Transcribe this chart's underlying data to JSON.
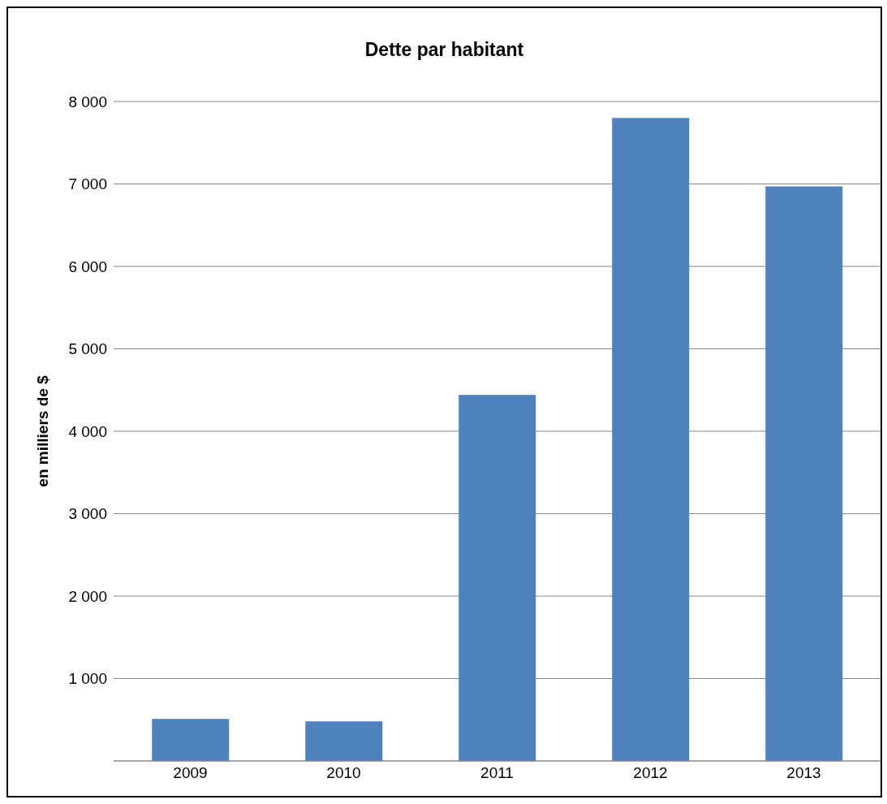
{
  "chart_data": {
    "type": "bar",
    "title": "Dette par habitant",
    "ylabel": "en milliers de $",
    "categories": [
      "2009",
      "2010",
      "2011",
      "2012",
      "2013"
    ],
    "values": [
      510,
      480,
      4440,
      7800,
      6970
    ],
    "color": "#4f81bd",
    "ylim": [
      0,
      8000
    ],
    "yticks": [
      {
        "value": 0,
        "label": null
      },
      {
        "value": 1000,
        "label": "1 000"
      },
      {
        "value": 2000,
        "label": "2 000"
      },
      {
        "value": 3000,
        "label": "3 000"
      },
      {
        "value": 4000,
        "label": "4 000"
      },
      {
        "value": 5000,
        "label": "5 000"
      },
      {
        "value": 6000,
        "label": "6 000"
      },
      {
        "value": 7000,
        "label": "7 000"
      },
      {
        "value": 8000,
        "label": "8 000"
      }
    ],
    "grid": "y"
  }
}
